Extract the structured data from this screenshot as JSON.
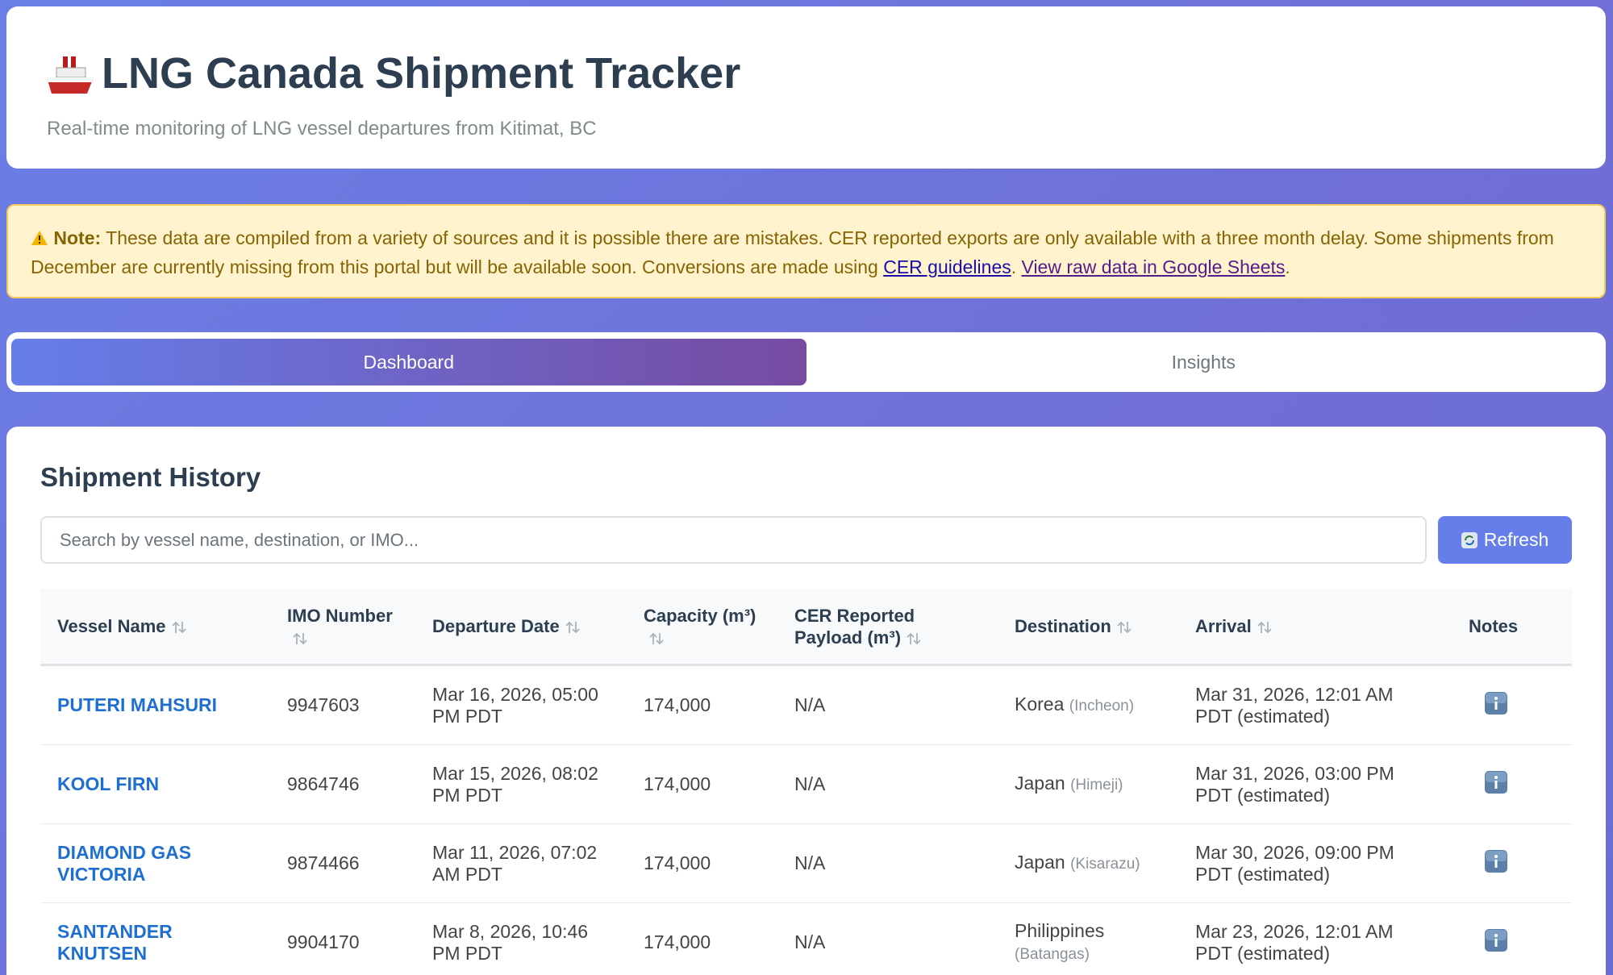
{
  "header": {
    "title": "LNG Canada Shipment Tracker",
    "subtitle": "Real-time monitoring of LNG vessel departures from Kitimat, BC"
  },
  "note": {
    "label": "Note:",
    "text": " These data are compiled from a variety of sources and it is possible there are mistakes. CER reported exports are only available with a three month delay. Some shipments from December are currently missing from this portal but will be available soon. Conversions are made using ",
    "link1": "CER guidelines",
    "middle": ". ",
    "link2": "View raw data in Google Sheets",
    "end": "."
  },
  "tabs": [
    {
      "label": "Dashboard",
      "active": true
    },
    {
      "label": "Insights",
      "active": false
    }
  ],
  "section": {
    "title": "Shipment History",
    "search_placeholder": "Search by vessel name, destination, or IMO...",
    "refresh": "Refresh"
  },
  "table": {
    "columns": [
      {
        "label": "Vessel Name",
        "sortable": true
      },
      {
        "label": "IMO Number",
        "sortable": true
      },
      {
        "label": "Departure Date",
        "sortable": true
      },
      {
        "label": "Capacity (m³)",
        "sortable": true
      },
      {
        "label": "CER Reported Payload (m³)",
        "sortable": true
      },
      {
        "label": "Destination",
        "sortable": true
      },
      {
        "label": "Arrival",
        "sortable": true
      },
      {
        "label": "Notes",
        "sortable": false
      }
    ],
    "rows": [
      {
        "vessel": "PUTERI MAHSURI",
        "imo": "9947603",
        "departure": "Mar 16, 2026, 05:00 PM PDT",
        "capacity": "174,000",
        "payload": "N/A",
        "destination": "Korea",
        "port": "(Incheon)",
        "arrival": "Mar 31, 2026, 12:01 AM PDT (estimated)"
      },
      {
        "vessel": "KOOL FIRN",
        "imo": "9864746",
        "departure": "Mar 15, 2026, 08:02 PM PDT",
        "capacity": "174,000",
        "payload": "N/A",
        "destination": "Japan",
        "port": "(Himeji)",
        "arrival": "Mar 31, 2026, 03:00 PM PDT (estimated)"
      },
      {
        "vessel": "DIAMOND GAS VICTORIA",
        "imo": "9874466",
        "departure": "Mar 11, 2026, 07:02 AM PDT",
        "capacity": "174,000",
        "payload": "N/A",
        "destination": "Japan",
        "port": "(Kisarazu)",
        "arrival": "Mar 30, 2026, 09:00 PM PDT (estimated)"
      },
      {
        "vessel": "SANTANDER KNUTSEN",
        "imo": "9904170",
        "departure": "Mar 8, 2026, 10:46 PM PDT",
        "capacity": "174,000",
        "payload": "N/A",
        "destination": "Philippines",
        "port": "(Batangas)",
        "arrival": "Mar 23, 2026, 12:01 AM PDT (estimated)"
      }
    ]
  }
}
